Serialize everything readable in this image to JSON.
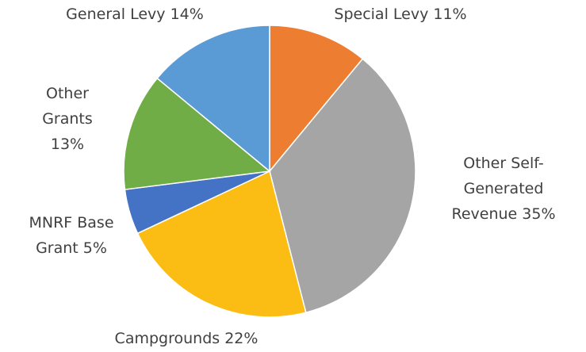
{
  "chart_data": {
    "type": "pie",
    "categories": [
      "Special Levy",
      "Other Self-Generated Revenue",
      "Campgrounds",
      "MNRF Base Grant",
      "Other Grants",
      "General Levy"
    ],
    "values": [
      11,
      35,
      22,
      5,
      13,
      14
    ],
    "value_labels": [
      "11%",
      "35%",
      "22%",
      "5%",
      "13%",
      "14%"
    ],
    "colors": [
      "#ed7d31",
      "#a5a5a5",
      "#fbbc13",
      "#4472c4",
      "#70ad47",
      "#5b9bd5"
    ]
  }
}
